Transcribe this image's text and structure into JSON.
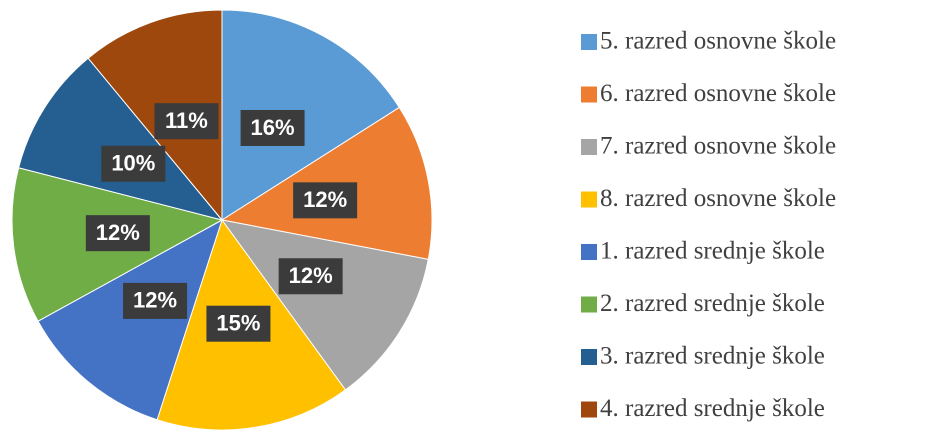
{
  "chart_data": {
    "type": "pie",
    "categories": [
      "5. razred osnovne škole",
      "6. razred osnovne škole",
      "7. razred osnovne škole",
      "8. razred osnovne škole",
      "1. razred srednje škole",
      "2. razred srednje škole",
      "3. razred srednje škole",
      "4. razred srednje škole"
    ],
    "values": [
      16,
      12,
      12,
      15,
      12,
      12,
      10,
      11
    ],
    "value_labels": [
      "16%",
      "12%",
      "12%",
      "15%",
      "12%",
      "12%",
      "10%",
      "11%"
    ],
    "colors": [
      "#5b9bd5",
      "#ed7d31",
      "#a5a5a5",
      "#ffc000",
      "#4472c4",
      "#70ad47",
      "#255e91",
      "#9e480e"
    ],
    "legend": "right"
  }
}
